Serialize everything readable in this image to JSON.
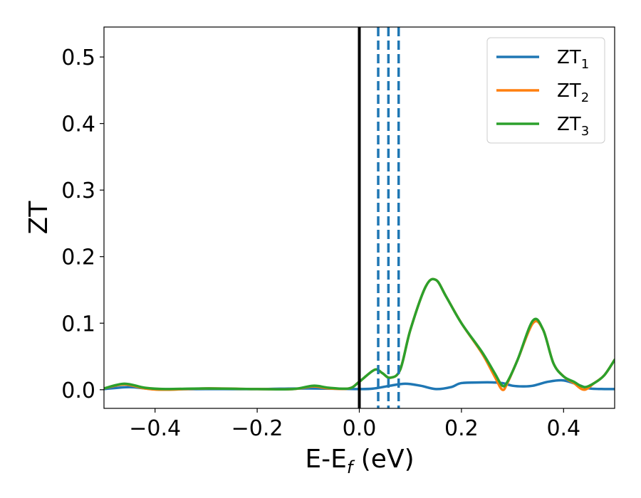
{
  "chart_data": {
    "type": "line",
    "xlabel": "E-E",
    "xlabel_sub": "f",
    "xlabel_unit": " (eV)",
    "ylabel": "ZT",
    "xlim": [
      -0.5,
      0.5
    ],
    "ylim": [
      -0.028,
      0.545
    ],
    "grid": false,
    "legend_position": "top-right",
    "x_ticks": [
      {
        "value": -0.4,
        "label": "−0.4"
      },
      {
        "value": -0.2,
        "label": "−0.2"
      },
      {
        "value": 0.0,
        "label": "0.0"
      },
      {
        "value": 0.2,
        "label": "0.2"
      },
      {
        "value": 0.4,
        "label": "0.4"
      }
    ],
    "y_ticks": [
      {
        "value": 0.0,
        "label": "0.0"
      },
      {
        "value": 0.1,
        "label": "0.1"
      },
      {
        "value": 0.2,
        "label": "0.2"
      },
      {
        "value": 0.3,
        "label": "0.3"
      },
      {
        "value": 0.4,
        "label": "0.4"
      },
      {
        "value": 0.5,
        "label": "0.5"
      }
    ],
    "vlines": [
      {
        "x": 0.0,
        "style": "solid",
        "color": "#000000"
      },
      {
        "x": 0.037,
        "style": "dashed",
        "color": "#1f77b4"
      },
      {
        "x": 0.057,
        "style": "dashed",
        "color": "#1f77b4"
      },
      {
        "x": 0.077,
        "style": "dashed",
        "color": "#1f77b4"
      }
    ],
    "series": [
      {
        "name": "ZT",
        "sub": "1",
        "color": "#1f77b4",
        "x": [
          -0.5,
          -0.45,
          -0.4,
          -0.3,
          -0.2,
          -0.1,
          0.0,
          0.03,
          0.06,
          0.09,
          0.12,
          0.15,
          0.18,
          0.2,
          0.24,
          0.26,
          0.28,
          0.3,
          0.32,
          0.34,
          0.37,
          0.4,
          0.43,
          0.45,
          0.48,
          0.5
        ],
        "y": [
          0.001,
          0.004,
          0.001,
          0.001,
          0.001,
          0.002,
          0.001,
          0.002,
          0.006,
          0.009,
          0.006,
          0.001,
          0.004,
          0.01,
          0.011,
          0.011,
          0.01,
          0.006,
          0.005,
          0.006,
          0.012,
          0.014,
          0.007,
          0.002,
          0.001,
          0.001
        ]
      },
      {
        "name": "ZT",
        "sub": "2",
        "color": "#ff7f0e",
        "x": [
          -0.5,
          -0.46,
          -0.42,
          -0.38,
          -0.3,
          -0.2,
          -0.13,
          -0.09,
          -0.06,
          -0.02,
          0.0,
          0.03,
          0.045,
          0.06,
          0.08,
          0.1,
          0.13,
          0.15,
          0.17,
          0.2,
          0.24,
          0.265,
          0.28,
          0.29,
          0.31,
          0.34,
          0.36,
          0.38,
          0.4,
          0.42,
          0.44,
          0.46,
          0.48,
          0.5
        ],
        "y": [
          0.002,
          0.008,
          0.002,
          0.0,
          0.002,
          0.001,
          0.001,
          0.005,
          0.002,
          0.002,
          0.012,
          0.03,
          0.025,
          0.018,
          0.03,
          0.09,
          0.155,
          0.165,
          0.14,
          0.1,
          0.055,
          0.02,
          0.0,
          0.01,
          0.045,
          0.1,
          0.09,
          0.04,
          0.02,
          0.01,
          0.0,
          0.01,
          0.022,
          0.045
        ]
      },
      {
        "name": "ZT",
        "sub": "3",
        "color": "#2ca02c",
        "x": [
          -0.5,
          -0.46,
          -0.42,
          -0.38,
          -0.3,
          -0.2,
          -0.13,
          -0.09,
          -0.06,
          -0.02,
          0.0,
          0.03,
          0.045,
          0.06,
          0.08,
          0.1,
          0.13,
          0.15,
          0.17,
          0.2,
          0.24,
          0.265,
          0.28,
          0.29,
          0.31,
          0.34,
          0.36,
          0.38,
          0.4,
          0.42,
          0.44,
          0.46,
          0.48,
          0.5
        ],
        "y": [
          0.002,
          0.009,
          0.003,
          0.001,
          0.002,
          0.001,
          0.001,
          0.006,
          0.003,
          0.002,
          0.012,
          0.03,
          0.025,
          0.018,
          0.03,
          0.09,
          0.155,
          0.165,
          0.14,
          0.1,
          0.057,
          0.025,
          0.006,
          0.012,
          0.045,
          0.104,
          0.09,
          0.04,
          0.02,
          0.012,
          0.004,
          0.01,
          0.022,
          0.045
        ]
      }
    ]
  }
}
